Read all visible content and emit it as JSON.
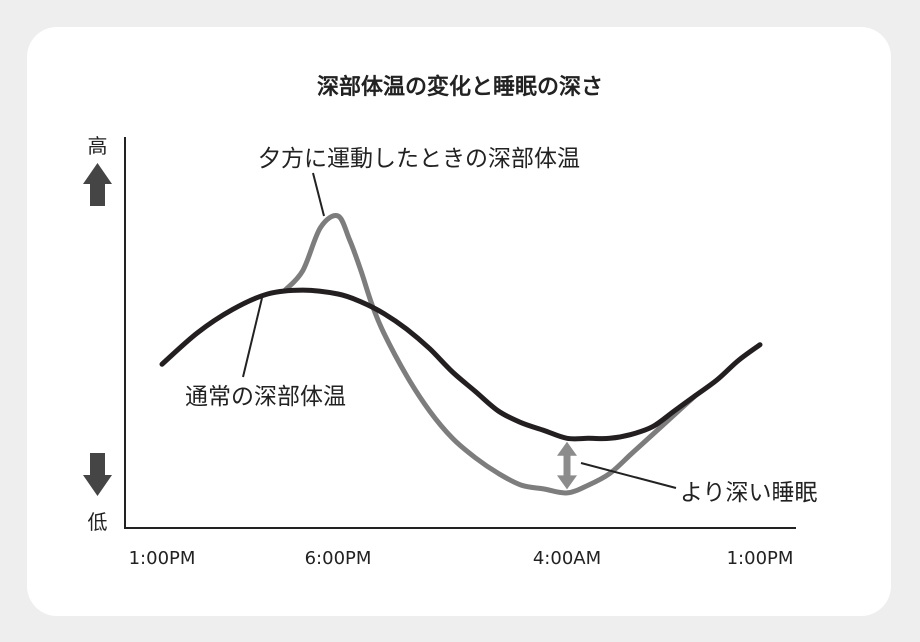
{
  "chart_data": {
    "type": "line",
    "title": "深部体温の変化と睡眠の深さ",
    "x_ticks": [
      "1:00PM",
      "6:00PM",
      "4:00AM",
      "1:00PM"
    ],
    "y_axis_labels": {
      "high": "高",
      "low": "低"
    },
    "ylim": [
      0,
      100
    ],
    "grid": false,
    "series": [
      {
        "name": "通常の深部体温",
        "color": "#231f20",
        "x": [
          "1:00PM",
          "2:00PM",
          "3:00PM",
          "4:00PM",
          "5:00PM",
          "6:00PM",
          "7:00PM",
          "8:00PM",
          "9:00PM",
          "10:00PM",
          "11:00PM",
          "12:00AM",
          "1:00AM",
          "2:00AM",
          "3:00AM",
          "4:00AM",
          "5:00AM",
          "6:00AM",
          "7:00AM",
          "8:00AM",
          "9:00AM",
          "10:00AM",
          "11:00AM",
          "12:00PM",
          "1:00PM"
        ],
        "y": [
          42,
          50,
          56,
          60,
          61,
          60,
          58,
          55,
          51,
          46,
          40,
          35,
          30,
          27,
          25,
          23,
          23,
          23,
          24,
          26,
          30,
          34,
          38,
          43,
          47
        ]
      },
      {
        "name": "夕方に運動したときの深部体温",
        "color": "#7d7d7d",
        "x": [
          "4:30PM",
          "5:00PM",
          "5:30PM",
          "6:00PM",
          "6:30PM",
          "7:00PM",
          "7:30PM",
          "8:00PM",
          "9:00PM",
          "10:00PM",
          "11:00PM",
          "12:00AM",
          "1:00AM",
          "2:00AM",
          "3:00AM",
          "4:00AM",
          "5:00AM",
          "6:00AM",
          "7:00AM",
          "8:00AM",
          "9:00AM",
          "10:00AM"
        ],
        "y": [
          61,
          66,
          77,
          80,
          74,
          66,
          57,
          50,
          39,
          30,
          23,
          18,
          14,
          11,
          10,
          9,
          11,
          14,
          19,
          24,
          29,
          34
        ]
      }
    ],
    "annotations": [
      {
        "text": "より深い睡眠",
        "x": "4:00AM",
        "color": "#8c8c8c"
      }
    ]
  }
}
